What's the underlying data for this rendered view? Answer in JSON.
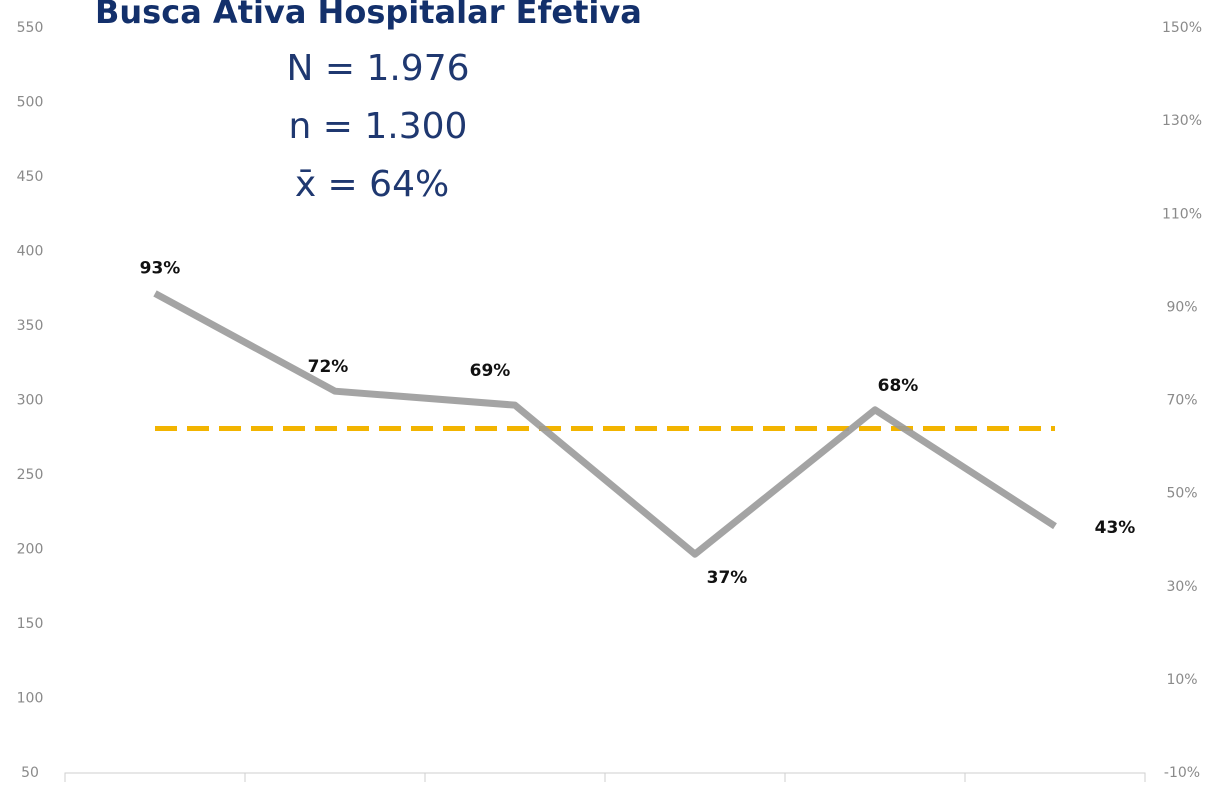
{
  "chart_data": {
    "type": "line",
    "title": "Busca Ativa Hospitalar Efetiva",
    "annotations": [
      "N = 1.976",
      "n = 1.300",
      "x̄ =  64%"
    ],
    "categories": [
      null,
      null,
      null,
      null,
      null,
      null
    ],
    "ylim": [
      50,
      550
    ],
    "yticks": [
      50,
      100,
      150,
      200,
      250,
      300,
      350,
      400,
      450,
      500,
      550
    ],
    "y2lim": [
      -10,
      150
    ],
    "y2ticks": [
      {
        "value": -10,
        "label": "-10%"
      },
      {
        "value": 10,
        "label": "10%"
      },
      {
        "value": 30,
        "label": "30%"
      },
      {
        "value": 50,
        "label": "50%"
      },
      {
        "value": 70,
        "label": "70%"
      },
      {
        "value": 90,
        "label": "90%"
      },
      {
        "value": 110,
        "label": "110%"
      },
      {
        "value": 130,
        "label": "130%"
      },
      {
        "value": 150,
        "label": "150%"
      }
    ],
    "series": [
      {
        "axis": "y2",
        "color": "#9a9a9a",
        "values": [
          93,
          72,
          69,
          37,
          68,
          43
        ],
        "value_labels": [
          "93%",
          "72%",
          "69%",
          "37%",
          "68%",
          "43%"
        ]
      }
    ],
    "reference_line": {
      "axis": "y2",
      "value": 64,
      "color": "#f2b400"
    }
  }
}
